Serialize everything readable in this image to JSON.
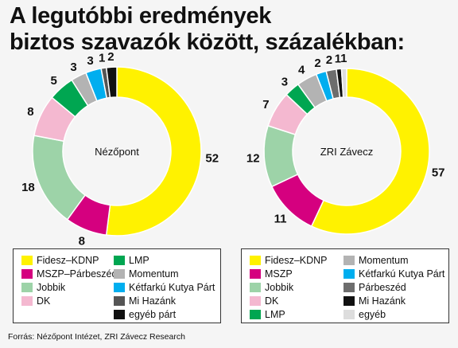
{
  "title": {
    "line1": "A legutóbbi eredmények",
    "line2": "biztos szavazók között, százalékban:"
  },
  "source": "Forrás: Nézőpont Intézet, ZRI Závecz Research",
  "chart_data": [
    {
      "type": "pie",
      "center_label": "Nézőpont",
      "series": [
        {
          "name": "Fidesz–KDNP",
          "value": 52,
          "color": "#fff200"
        },
        {
          "name": "MSZP–Párbeszéd",
          "value": 8,
          "color": "#d5007f"
        },
        {
          "name": "Jobbik",
          "value": 18,
          "color": "#9dd3a8"
        },
        {
          "name": "DK",
          "value": 8,
          "color": "#f4b8d0"
        },
        {
          "name": "LMP",
          "value": 5,
          "color": "#00a651"
        },
        {
          "name": "Momentum",
          "value": 3,
          "color": "#b3b3b3"
        },
        {
          "name": "Kétfarkú Kutya Párt",
          "value": 3,
          "color": "#00aeef"
        },
        {
          "name": "Mi Hazánk",
          "value": 1,
          "color": "#555555"
        },
        {
          "name": "egyéb párt",
          "value": 2,
          "color": "#111111"
        }
      ]
    },
    {
      "type": "pie",
      "center_label": "ZRI Závecz",
      "series": [
        {
          "name": "Fidesz–KDNP",
          "value": 57,
          "color": "#fff200"
        },
        {
          "name": "MSZP",
          "value": 11,
          "color": "#d5007f"
        },
        {
          "name": "Jobbik",
          "value": 12,
          "color": "#9dd3a8"
        },
        {
          "name": "DK",
          "value": 7,
          "color": "#f4b8d0"
        },
        {
          "name": "LMP",
          "value": 3,
          "color": "#00a651"
        },
        {
          "name": "Momentum",
          "value": 4,
          "color": "#b3b3b3"
        },
        {
          "name": "Kétfarkú Kutya Párt",
          "value": 2,
          "color": "#00aeef"
        },
        {
          "name": "Párbeszéd",
          "value": 2,
          "color": "#6d6d6d"
        },
        {
          "name": "Mi Hazánk",
          "value": 1,
          "color": "#111111"
        },
        {
          "name": "egyéb",
          "value": 1,
          "color": "#dddddd"
        }
      ]
    }
  ],
  "legends": [
    {
      "columns": [
        [
          {
            "label": "Fidesz–KDNP",
            "color": "#fff200"
          },
          {
            "label": "MSZP–Párbeszéd",
            "color": "#d5007f"
          },
          {
            "label": "Jobbik",
            "color": "#9dd3a8"
          },
          {
            "label": "DK",
            "color": "#f4b8d0"
          }
        ],
        [
          {
            "label": "LMP",
            "color": "#00a651"
          },
          {
            "label": "Momentum",
            "color": "#b3b3b3"
          },
          {
            "label": "Kétfarkú Kutya Párt",
            "color": "#00aeef"
          },
          {
            "label": "Mi Hazánk",
            "color": "#555555"
          },
          {
            "label": "egyéb párt",
            "color": "#111111"
          }
        ]
      ]
    },
    {
      "columns": [
        [
          {
            "label": "Fidesz–KDNP",
            "color": "#fff200"
          },
          {
            "label": "MSZP",
            "color": "#d5007f"
          },
          {
            "label": "Jobbik",
            "color": "#9dd3a8"
          },
          {
            "label": "DK",
            "color": "#f4b8d0"
          },
          {
            "label": "LMP",
            "color": "#00a651"
          }
        ],
        [
          {
            "label": "Momentum",
            "color": "#b3b3b3"
          },
          {
            "label": "Kétfarkú Kutya Párt",
            "color": "#00aeef"
          },
          {
            "label": "Párbeszéd",
            "color": "#6d6d6d"
          },
          {
            "label": "Mi Hazánk",
            "color": "#111111"
          },
          {
            "label": "egyéb",
            "color": "#dddddd"
          }
        ]
      ]
    }
  ]
}
